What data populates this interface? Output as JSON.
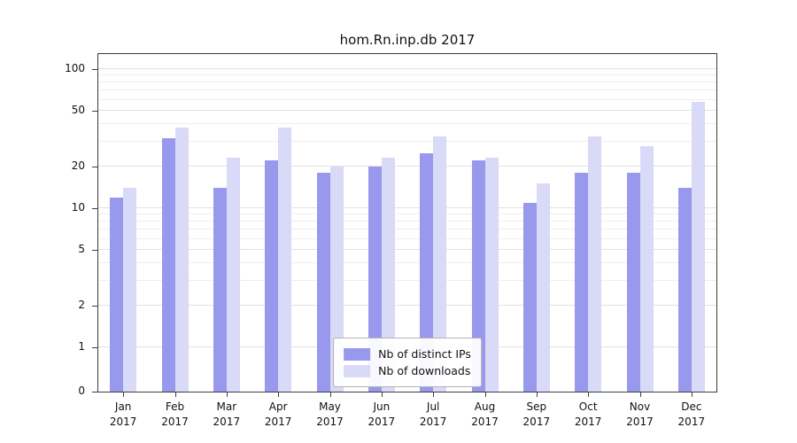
{
  "chart_data": {
    "type": "bar",
    "title": "hom.Rn.inp.db 2017",
    "categories": [
      "Jan 2017",
      "Feb 2017",
      "Mar 2017",
      "Apr 2017",
      "May 2017",
      "Jun 2017",
      "Jul 2017",
      "Aug 2017",
      "Sep 2017",
      "Oct 2017",
      "Nov 2017",
      "Dec 2017"
    ],
    "series": [
      {
        "name": "Nb of distinct IPs",
        "color": "#9898ec",
        "values": [
          12,
          32,
          14,
          22,
          18,
          20,
          25,
          22,
          11,
          18,
          18,
          14
        ]
      },
      {
        "name": "Nb of downloads",
        "color": "#d9d9f8",
        "values": [
          14,
          38,
          23,
          38,
          20,
          23,
          33,
          23,
          15,
          33,
          28,
          58
        ]
      }
    ],
    "xlabel": "",
    "ylabel": "",
    "yscale": "symlog",
    "yticks": [
      0,
      1,
      2,
      5,
      10,
      20,
      50,
      100
    ],
    "minor_gridlines": [
      3,
      4,
      6,
      7,
      8,
      9,
      30,
      40,
      60,
      70,
      80,
      90
    ],
    "ylim": [
      0,
      130
    ],
    "grid": true,
    "legend_position": "lower center"
  }
}
